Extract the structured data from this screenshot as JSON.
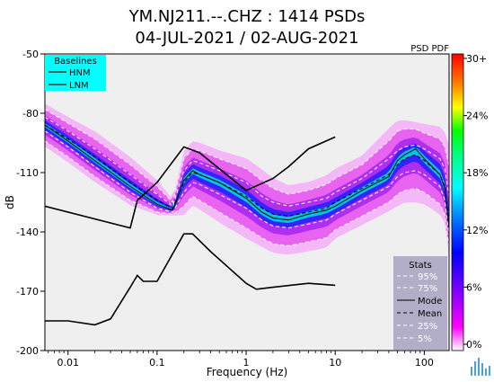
{
  "title_line1": "YM.NJ211.--.CHZ : 1414 PSDs",
  "title_line2": "04-JUL-2021 / 02-AUG-2021",
  "psd_pdf_label": "PSD PDF",
  "baselines": {
    "title": "Baselines",
    "items": [
      "HNM",
      "LNM"
    ],
    "bg_color": "#00ffff"
  },
  "stats_legend": {
    "title": "Stats",
    "items": [
      {
        "label": "95%",
        "style": "white-dashed"
      },
      {
        "label": "75%",
        "style": "white-dashed"
      },
      {
        "label": "Mode",
        "style": "black-solid"
      },
      {
        "label": "Mean",
        "style": "black-dashed"
      },
      {
        "label": "25%",
        "style": "white-dashed"
      },
      {
        "label": "5%",
        "style": "white-dashed"
      }
    ],
    "bg_color": "#b3aec8"
  },
  "chart_data": {
    "type": "line",
    "title": "YM.NJ211.--.CHZ : 1414 PSDs",
    "subtitle": "04-JUL-2021 / 02-AUG-2021",
    "xlabel": "Frequency (Hz)",
    "ylabel": "dB",
    "x_scale": "log",
    "xlim": [
      0.0055,
      190
    ],
    "ylim": [
      -200,
      -50
    ],
    "x_ticks": [
      0.01,
      0.1,
      1,
      10,
      100
    ],
    "x_tick_labels": [
      "0.01",
      "0.1",
      "1",
      "10",
      "100"
    ],
    "y_ticks": [
      -50,
      -80,
      -110,
      -140,
      -170,
      -200
    ],
    "y_tick_labels": [
      "-50",
      "-80",
      "-110",
      "-140",
      "-170",
      "-200"
    ],
    "colorbar": {
      "ticks": [
        "0%",
        "6%",
        "12%",
        "18%",
        "24%",
        "30+"
      ],
      "colors": [
        "#ffffff",
        "#ff00ff",
        "#7f00ff",
        "#0000ff",
        "#00ffff",
        "#00ff00",
        "#ffff00",
        "#ff8000",
        "#ff0000"
      ]
    },
    "series": [
      {
        "name": "HNM",
        "x": [
          0.0055,
          0.05,
          0.06,
          0.1,
          0.2,
          0.3,
          1,
          2,
          3,
          5,
          10
        ],
        "y": [
          -127,
          -138,
          -124,
          -115,
          -97,
          -100,
          -119,
          -113,
          -107,
          -98,
          -92
        ]
      },
      {
        "name": "LNM",
        "x": [
          0.0055,
          0.01,
          0.02,
          0.03,
          0.05,
          0.06,
          0.07,
          0.1,
          0.2,
          0.25,
          0.4,
          1,
          1.3,
          2,
          5,
          10
        ],
        "y": [
          -185,
          -185,
          -187,
          -184,
          -168,
          -162,
          -165,
          -165,
          -141,
          -141,
          -150,
          -166,
          -169,
          -168,
          -166,
          -167
        ]
      },
      {
        "name": "Mode",
        "x": [
          0.0055,
          0.01,
          0.02,
          0.05,
          0.1,
          0.15,
          0.2,
          0.25,
          0.3,
          0.5,
          1,
          1.5,
          2,
          3,
          5,
          8,
          10,
          20,
          40,
          50,
          60,
          80,
          100,
          150,
          170,
          190
        ],
        "y": [
          -86,
          -94,
          -104,
          -117,
          -126,
          -129,
          -114,
          -109,
          -111,
          -115,
          -123,
          -130,
          -133,
          -134,
          -131,
          -129,
          -127,
          -119,
          -112,
          -104,
          -101,
          -98,
          -103,
          -111,
          -118,
          -138
        ]
      },
      {
        "name": "Mean",
        "x": [
          0.0055,
          0.01,
          0.02,
          0.05,
          0.1,
          0.15,
          0.2,
          0.25,
          0.3,
          0.5,
          1,
          1.5,
          2,
          3,
          5,
          8,
          10,
          20,
          40,
          50,
          60,
          80,
          100,
          150,
          170,
          190
        ],
        "y": [
          -86,
          -93,
          -102,
          -115,
          -124,
          -128,
          -115,
          -110,
          -111,
          -115,
          -122,
          -128,
          -131,
          -132,
          -130,
          -128,
          -125,
          -118,
          -111,
          -106,
          -103,
          -101,
          -104,
          -111,
          -117,
          -136
        ]
      },
      {
        "name": "95%",
        "x": [
          0.0055,
          0.01,
          0.02,
          0.05,
          0.1,
          0.15,
          0.2,
          0.25,
          0.3,
          0.5,
          1,
          1.5,
          2,
          3,
          5,
          8,
          10,
          20,
          40,
          50,
          60,
          80,
          100,
          150,
          170,
          190
        ],
        "y": [
          -78,
          -85,
          -93,
          -106,
          -117,
          -125,
          -103,
          -98,
          -99,
          -103,
          -108,
          -114,
          -118,
          -121,
          -119,
          -116,
          -113,
          -106,
          -94,
          -89,
          -88,
          -88,
          -90,
          -93,
          -97,
          -107
        ]
      },
      {
        "name": "75%",
        "x": [
          0.0055,
          0.01,
          0.02,
          0.05,
          0.1,
          0.15,
          0.2,
          0.25,
          0.3,
          0.5,
          1,
          1.5,
          2,
          3,
          5,
          8,
          10,
          20,
          40,
          50,
          60,
          80,
          100,
          150,
          170,
          190
        ],
        "y": [
          -82,
          -89,
          -98,
          -111,
          -121,
          -127,
          -109,
          -104,
          -105,
          -109,
          -115,
          -122,
          -125,
          -127,
          -125,
          -123,
          -120,
          -113,
          -103,
          -99,
          -97,
          -96,
          -98,
          -103,
          -108,
          -122
        ]
      },
      {
        "name": "25%",
        "x": [
          0.0055,
          0.01,
          0.02,
          0.05,
          0.1,
          0.15,
          0.2,
          0.25,
          0.3,
          0.5,
          1,
          1.5,
          2,
          3,
          5,
          8,
          10,
          20,
          40,
          50,
          60,
          80,
          100,
          150,
          170,
          190
        ],
        "y": [
          -89,
          -97,
          -107,
          -120,
          -128,
          -130,
          -120,
          -115,
          -116,
          -121,
          -128,
          -134,
          -137,
          -138,
          -136,
          -134,
          -131,
          -124,
          -117,
          -112,
          -110,
          -109,
          -111,
          -117,
          -124,
          -142
        ]
      },
      {
        "name": "5%",
        "x": [
          0.0055,
          0.01,
          0.02,
          0.05,
          0.1,
          0.15,
          0.2,
          0.25,
          0.3,
          0.5,
          1,
          1.5,
          2,
          3,
          5,
          8,
          10,
          20,
          40,
          50,
          60,
          80,
          100,
          150,
          170,
          190
        ],
        "y": [
          -94,
          -102,
          -112,
          -124,
          -130,
          -131,
          -127,
          -122,
          -124,
          -130,
          -138,
          -143,
          -146,
          -147,
          -145,
          -143,
          -139,
          -132,
          -125,
          -121,
          -119,
          -118,
          -120,
          -126,
          -131,
          -148
        ]
      }
    ]
  }
}
